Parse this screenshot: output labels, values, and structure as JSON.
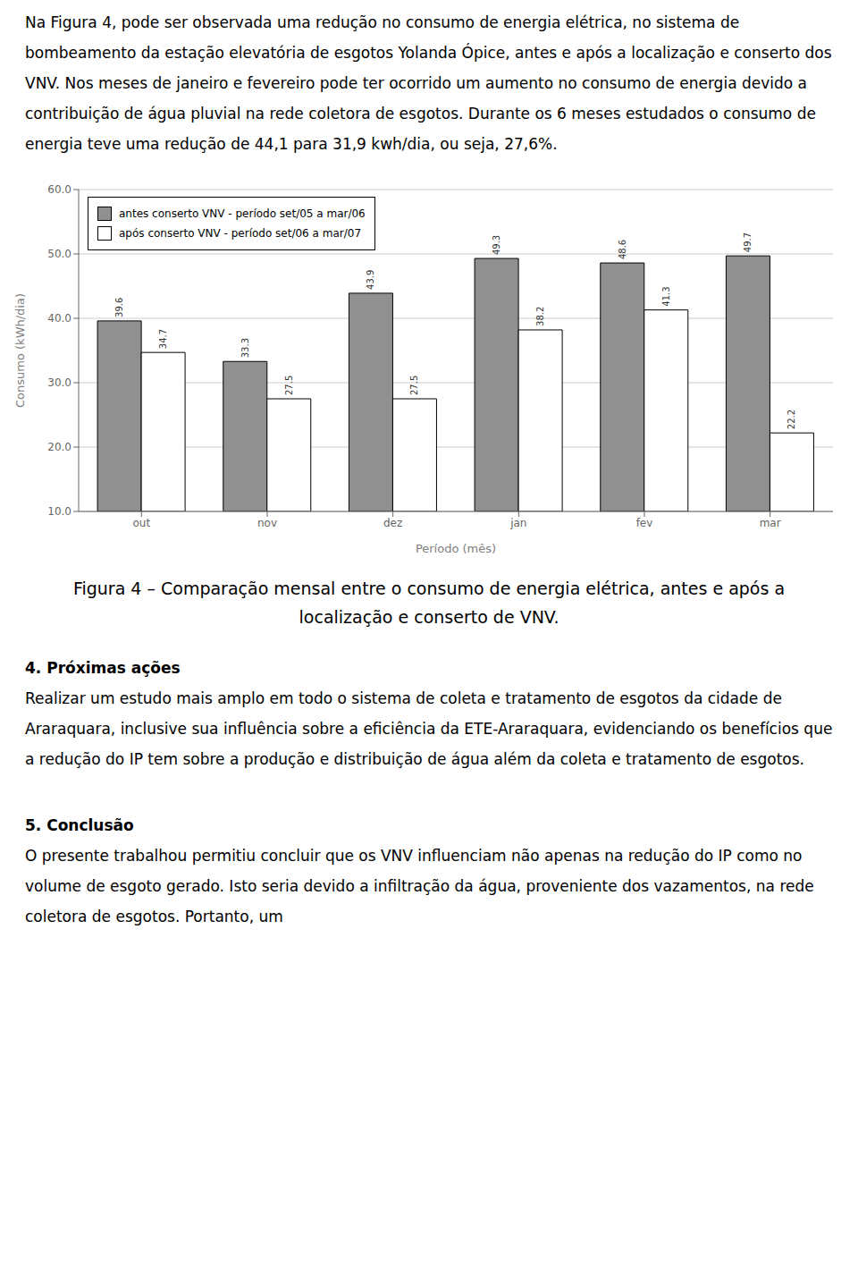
{
  "chart_data": {
    "type": "bar",
    "categories": [
      "out",
      "nov",
      "dez",
      "jan",
      "fev",
      "mar"
    ],
    "series": [
      {
        "name": "antes conserto VNV - período set/05 a mar/06",
        "color": "#909090",
        "values": [
          39.6,
          33.3,
          43.9,
          49.3,
          48.6,
          49.7
        ]
      },
      {
        "name": "após conserto VNV - período set/06 a mar/07",
        "color": "#ffffff",
        "values": [
          34.7,
          27.5,
          27.5,
          38.2,
          41.3,
          22.2
        ]
      }
    ],
    "xlabel": "Período (mês)",
    "ylabel": "Consumo (kWh/dia)",
    "ylim": [
      10.0,
      60.0
    ],
    "yticks": [
      {
        "value": 10.0,
        "label": "10.0"
      },
      {
        "value": 20.0,
        "label": "20.0"
      },
      {
        "value": 30.0,
        "label": "30.0"
      },
      {
        "value": 40.0,
        "label": "40.0"
      },
      {
        "value": 50.0,
        "label": "50.0"
      },
      {
        "value": 60.0,
        "label": "60.0"
      }
    ],
    "grid": true,
    "legend": "upper left",
    "data_labels": true
  },
  "text_above": "Na Figura 4, pode ser observada uma redução no consumo de energia elétrica, no sistema de bombeamento da estação elevatória de esgotos Yolanda Ópice, antes e após a localização e conserto dos VNV. Nos meses de janeiro e fevereiro pode ter ocorrido um aumento no consumo de energia devido a contribuição de água pluvial na rede coletora de esgotos. Durante os 6 meses estudados o consumo de energia teve uma redução de 44,1 para 31,9  kwh/dia, ou seja, 27,6%.",
  "caption": [
    "Figura 4 – Comparação mensal entre o consumo de energia elétrica, antes e após a",
    "localização e conserto de VNV."
  ],
  "sections": [
    {
      "title": "4. Próximas ações",
      "body": "Realizar um estudo mais amplo em todo o sistema de coleta e tratamento de esgotos da cidade de Araraquara, inclusive sua influência sobre a eficiência da ETE-Araraquara, evidenciando os benefícios que a redução do IP tem sobre a produção e distribuição de água além da coleta e tratamento de esgotos."
    },
    {
      "title": "5. Conclusão",
      "body": "O presente trabalhou permitiu concluir que os VNV influenciam não apenas na redução do IP como no volume de esgoto gerado. Isto seria devido a infiltração da água, proveniente dos vazamentos, na rede coletora de esgotos. Portanto, um"
    }
  ]
}
